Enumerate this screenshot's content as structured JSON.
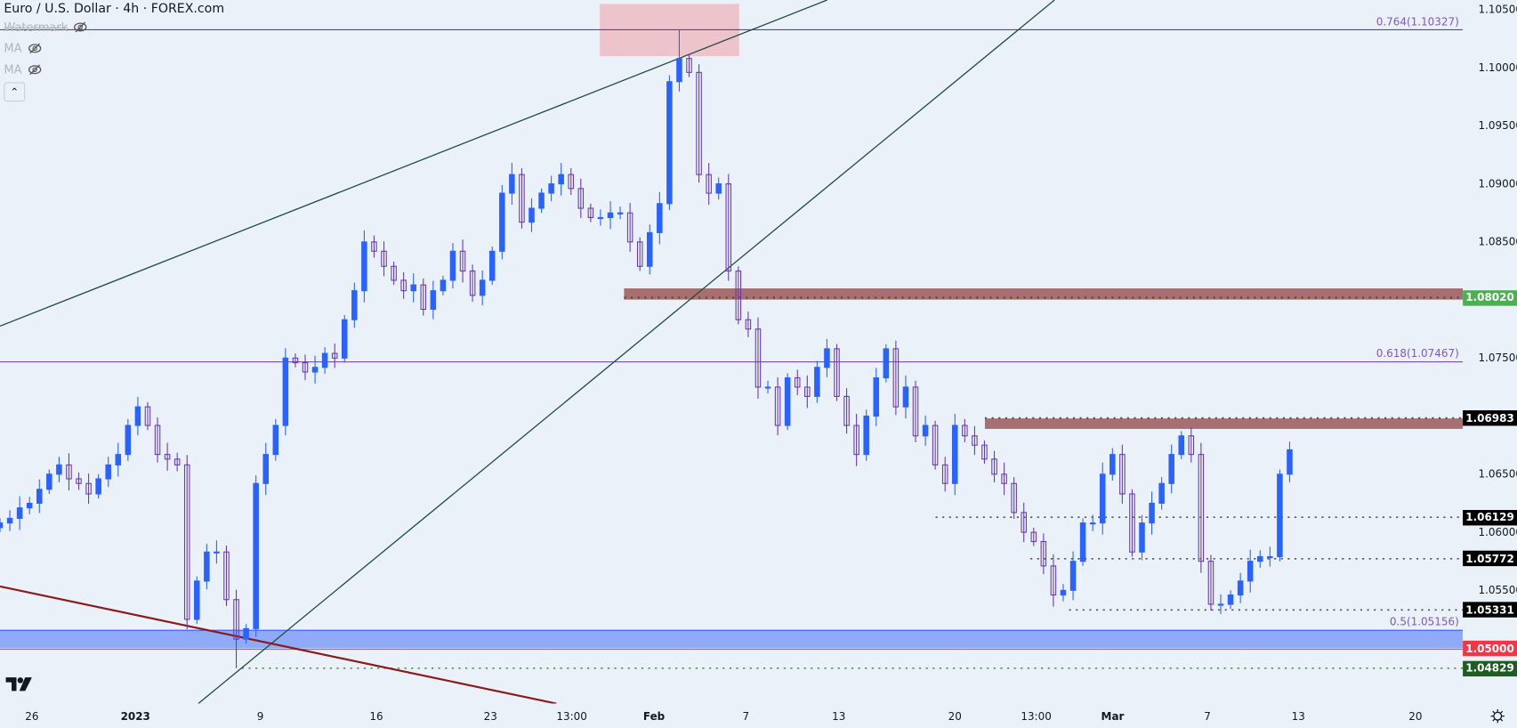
{
  "header": {
    "title": "Euro / U.S. Dollar · 4h · FOREX.com"
  },
  "legend": {
    "items": [
      {
        "label": "Watermark",
        "icon": "eye-off-icon",
        "hidden": true
      },
      {
        "label": "MA",
        "icon": "eye-off-icon"
      },
      {
        "label": "MA",
        "icon": "eye-off-icon"
      }
    ],
    "collapse_icon": "chevron-up-icon"
  },
  "colors": {
    "background": "#ebf1f9",
    "up": "#2962ff",
    "down": "#673ab7",
    "fib": "#673ab7",
    "resistance_zone": "#a86f72",
    "support_zone": "#8fabf7",
    "red_level": "#f23645",
    "green_tag": "#4caf50",
    "dark_green_tag": "#1b5e20",
    "black_tag": "#000000",
    "trendline": "#1e4d3f",
    "downtrend": "#8b1a1a",
    "top_box": "#edc3cc"
  },
  "chart_data": {
    "type": "candlestick",
    "symbol": "EUR/USD",
    "interval": "4h",
    "ylim": [
      1.044,
      1.1058
    ],
    "y_ticks": [
      "1.10500",
      "1.10000",
      "1.09500",
      "1.09000",
      "1.08500",
      "1.07500",
      "1.06500",
      "1.06000",
      "1.05500"
    ],
    "x_ticks": [
      {
        "label": "26"
      },
      {
        "label": "2023",
        "bold": true
      },
      {
        "label": "9"
      },
      {
        "label": "16"
      },
      {
        "label": "23"
      },
      {
        "label": "13:00"
      },
      {
        "label": "Feb",
        "bold": true
      },
      {
        "label": "7"
      },
      {
        "label": "13"
      },
      {
        "label": "20"
      },
      {
        "label": "13:00"
      },
      {
        "label": "Mar",
        "bold": true
      },
      {
        "label": "7"
      },
      {
        "label": "13"
      },
      {
        "label": "20"
      }
    ],
    "close": [
      1.0608,
      1.0612,
      1.0621,
      1.0625,
      1.0637,
      1.065,
      1.0658,
      1.0646,
      1.0642,
      1.0633,
      1.0646,
      1.0658,
      1.0667,
      1.0692,
      1.0708,
      1.0692,
      1.0667,
      1.0663,
      1.0658,
      1.0525,
      1.0558,
      1.0583,
      1.0583,
      1.0542,
      1.0508,
      1.0517,
      1.0642,
      1.0667,
      1.0692,
      1.075,
      1.0746,
      1.0738,
      1.0742,
      1.0754,
      1.075,
      1.0783,
      1.0808,
      1.085,
      1.0842,
      1.0829,
      1.0817,
      1.0808,
      1.0813,
      1.0792,
      1.0808,
      1.0817,
      1.0842,
      1.0825,
      1.0804,
      1.0817,
      1.0842,
      1.0892,
      1.0908,
      1.0867,
      1.0879,
      1.0892,
      1.09,
      1.0908,
      1.0896,
      1.0879,
      1.0871,
      1.0871,
      1.0875,
      1.0875,
      1.085,
      1.0829,
      1.0858,
      1.0883,
      1.0988,
      1.1008,
      1.0996,
      1.0908,
      1.0892,
      1.09,
      1.0825,
      1.0783,
      1.0775,
      1.0725,
      1.0725,
      1.0692,
      1.0733,
      1.0725,
      1.0717,
      1.0742,
      1.0758,
      1.0717,
      1.0692,
      1.0667,
      1.07,
      1.0733,
      1.0758,
      1.0708,
      1.0725,
      1.0683,
      1.0692,
      1.0658,
      1.0642,
      1.0692,
      1.0683,
      1.0675,
      1.0663,
      1.065,
      1.0642,
      1.0617,
      1.06,
      1.0592,
      1.0571,
      1.0546,
      1.055,
      1.0575,
      1.0608,
      1.0608,
      1.065,
      1.0667,
      1.0633,
      1.0583,
      1.0608,
      1.0625,
      1.0642,
      1.0667,
      1.0683,
      1.0667,
      1.0575,
      1.0538,
      1.0538,
      1.0546,
      1.0558,
      1.0575,
      1.0579,
      1.0579,
      1.065,
      1.0671
    ],
    "fib_levels": [
      {
        "label": "0.764(1.10327)",
        "price": 1.10327
      },
      {
        "label": "0.618(1.07467)",
        "price": 1.07467
      },
      {
        "label": "0.5(1.05156)",
        "price": 1.05156
      }
    ],
    "price_tags": [
      {
        "label": "1.08020",
        "price": 1.0802,
        "style": "green"
      },
      {
        "label": "1.06983",
        "price": 1.06983,
        "style": "black"
      },
      {
        "label": "1.06129",
        "price": 1.06129,
        "style": "black"
      },
      {
        "label": "1.05772",
        "price": 1.05772,
        "style": "black"
      },
      {
        "label": "1.05331",
        "price": 1.05331,
        "style": "black"
      },
      {
        "label": "1.05000",
        "price": 1.05,
        "style": "red"
      },
      {
        "label": "1.04829",
        "price": 1.04829,
        "style": "darkgreen"
      }
    ],
    "zones": [
      {
        "name": "resistance",
        "price_top": 1.081,
        "price_bottom": 1.0802
      },
      {
        "name": "resistance",
        "price_top": 1.0698,
        "price_bottom": 1.0689
      },
      {
        "name": "support",
        "price_top": 1.05156,
        "price_bottom": 1.05
      }
    ]
  }
}
